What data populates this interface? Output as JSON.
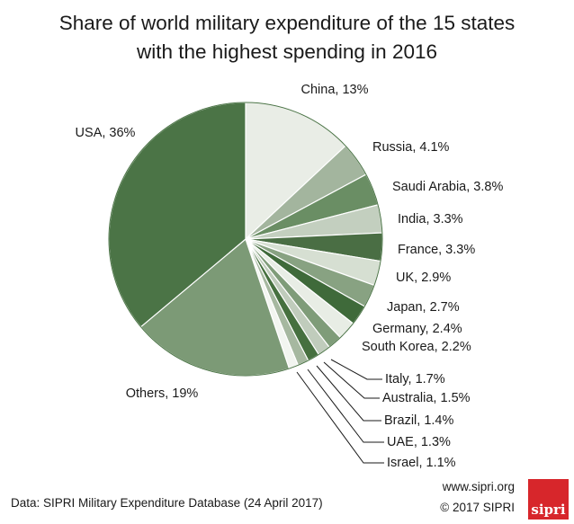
{
  "chart_data": {
    "type": "pie",
    "title": "Share of world military expenditure of the 15 states with the highest spending in 2016",
    "title_lines": [
      "Share of world military expenditure of the 15 states",
      "with the highest spending in 2016"
    ],
    "slices": [
      {
        "name": "China",
        "value": 13,
        "label": "China, 13%",
        "color": "#e9ede6"
      },
      {
        "name": "Russia",
        "value": 4.1,
        "label": "Russia, 4.1%",
        "color": "#a3b59e"
      },
      {
        "name": "Saudi Arabia",
        "value": 3.8,
        "label": "Saudi Arabia, 3.8%",
        "color": "#6a8e64"
      },
      {
        "name": "India",
        "value": 3.3,
        "label": "India, 3.3%",
        "color": "#c3cfbf"
      },
      {
        "name": "France",
        "value": 3.3,
        "label": "France, 3.3%",
        "color": "#4a6e44"
      },
      {
        "name": "UK",
        "value": 2.9,
        "label": "UK, 2.9%",
        "color": "#d6dfd2"
      },
      {
        "name": "Japan",
        "value": 2.7,
        "label": "Japan, 2.7%",
        "color": "#88a282"
      },
      {
        "name": "Germany",
        "value": 2.4,
        "label": "Germany, 2.4%",
        "color": "#3f6a3a"
      },
      {
        "name": "South Korea",
        "value": 2.2,
        "label": "South Korea, 2.2%",
        "color": "#e8ede5"
      },
      {
        "name": "Italy",
        "value": 1.7,
        "label": "Italy, 1.7%",
        "color": "#7f9c79"
      },
      {
        "name": "Australia",
        "value": 1.5,
        "label": "Australia, 1.5%",
        "color": "#c0ccbc"
      },
      {
        "name": "Brazil",
        "value": 1.4,
        "label": "Brazil, 1.4%",
        "color": "#46703f"
      },
      {
        "name": "UAE",
        "value": 1.3,
        "label": "UAE, 1.3%",
        "color": "#a6b8a0"
      },
      {
        "name": "Israel",
        "value": 1.1,
        "label": "Israel, 1.1%",
        "color": "#f2f5f0"
      },
      {
        "name": "Others",
        "value": 19,
        "label": "Others, 19%",
        "color": "#7c9a76"
      },
      {
        "name": "USA",
        "value": 36,
        "label": "USA, 36%",
        "color": "#4b7446"
      }
    ]
  },
  "footer": {
    "source": "Data: SIPRI Military Expenditure Database (24 April 2017)",
    "url": "www.sipri.org",
    "copyright": "© 2017 SIPRI",
    "logo_text": "sipri",
    "logo_color": "#d7262b"
  }
}
